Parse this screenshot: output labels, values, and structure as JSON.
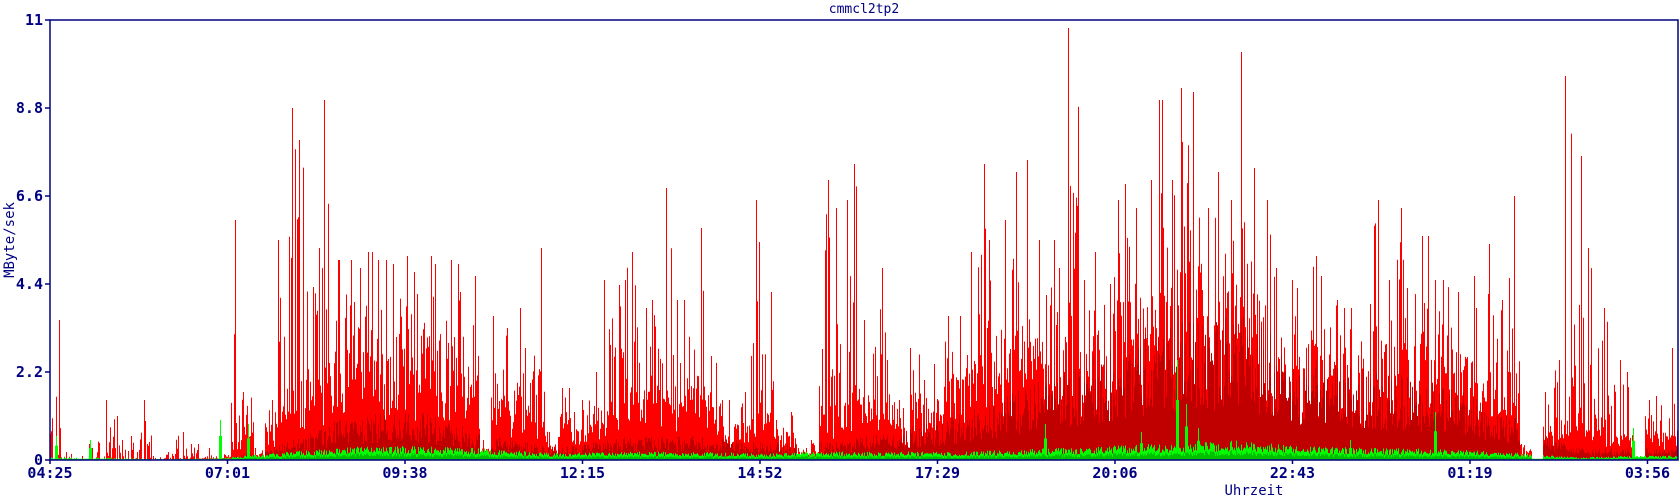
{
  "chart_data": {
    "type": "area",
    "title": "cmmcl2tp2",
    "xlabel": "Uhrzeit",
    "ylabel": "MByte/sek",
    "ylim": [
      0,
      11
    ],
    "yticks": [
      "0",
      "2.2",
      "4.4",
      "6.6",
      "8.8",
      "11"
    ],
    "xticks": [
      "04:25",
      "07:01",
      "09:38",
      "12:15",
      "14:52",
      "17:29",
      "20:06",
      "22:43",
      "01:19",
      "03:56"
    ],
    "x_start": "04:25",
    "x_span_hours": 24,
    "grid": false,
    "colors": {
      "red": "#ff0000",
      "dark_red": "#c00000",
      "green": "#00ff00",
      "dark_green": "#00c000",
      "axis": "#000080"
    },
    "red_max_per_10min": [
      3.5,
      0.2,
      0.1,
      0.4,
      1.5,
      1.1,
      0.5,
      0.6,
      1.5,
      0.1,
      0.2,
      0.7,
      0.4,
      0.4,
      0.3,
      0.2,
      6.0,
      1.7,
      0.3,
      1.5,
      5.5,
      8.8,
      8.0,
      5.3,
      9.0,
      5.0,
      5.0,
      4.8,
      5.2,
      5.0,
      4.9,
      5.1,
      4.7,
      5.1,
      4.9,
      5.0,
      4.9,
      4.6,
      0.5,
      3.6,
      3.3,
      3.8,
      2.8,
      5.3,
      0.7,
      1.8,
      1.2,
      1.5,
      2.2,
      4.5,
      4.5,
      5.2,
      3.8,
      4.0,
      6.8,
      4.0,
      4.0,
      5.8,
      2.6,
      1.5,
      1.5,
      1.7,
      6.5,
      4.2,
      1.0,
      1.2,
      0.3,
      0.5,
      7.0,
      6.3,
      6.5,
      7.4,
      3.5,
      4.8,
      2.5,
      1.5,
      2.8,
      2.0,
      2.4,
      3.6,
      3.6,
      5.2,
      7.4,
      5.5,
      6.0,
      7.2,
      7.5,
      5.5,
      5.5,
      4.8,
      10.8,
      4.5,
      5.2,
      4.4,
      6.5,
      6.9,
      6.3,
      7.0,
      9.0,
      7.0,
      9.3,
      9.2,
      6.3,
      7.2,
      6.5,
      10.2,
      7.3,
      6.5,
      4.8,
      4.5,
      4.3,
      5.1,
      4.6,
      4.0,
      3.8,
      3.8,
      3.9,
      6.5,
      4.5,
      6.3,
      4.3,
      5.6,
      4.5,
      4.5,
      4.2,
      4.6,
      3.8,
      5.4,
      4.0,
      6.6,
      0.4,
      0.0,
      1.7,
      2.5,
      9.6,
      7.6,
      5.3,
      3.8,
      2.5,
      2.2,
      0.1,
      1.5,
      1.6,
      2.8
    ],
    "red_typical_per_hour": [
      0,
      0,
      0.05,
      1.5,
      2.5,
      2.5,
      1.5,
      0.8,
      1.5,
      1.5,
      1.0,
      1.2,
      1.5,
      2.2,
      3.0,
      3.5,
      3.8,
      3.8,
      3.0,
      2.8,
      2.8,
      2.0,
      0.8,
      0.6
    ],
    "dark_red_typical_per_hour": [
      0,
      0,
      0,
      0.3,
      0.8,
      0.8,
      0.4,
      0.2,
      0.4,
      0.4,
      0.3,
      0.3,
      0.5,
      0.8,
      1.3,
      1.8,
      2.3,
      2.5,
      1.8,
      1.5,
      1.3,
      0.8,
      0.2,
      0.2
    ],
    "green_typical_per_hour": [
      0.05,
      0.02,
      0.03,
      0.15,
      0.25,
      0.25,
      0.2,
      0.12,
      0.15,
      0.15,
      0.12,
      0.15,
      0.15,
      0.15,
      0.2,
      0.25,
      0.3,
      0.35,
      0.25,
      0.22,
      0.2,
      0.15,
      0.05,
      0.08
    ],
    "green_spikes": [
      {
        "time": "04:30",
        "value": 0.6
      },
      {
        "time": "05:00",
        "value": 0.5
      },
      {
        "time": "06:55",
        "value": 1.0
      },
      {
        "time": "07:20",
        "value": 0.9
      },
      {
        "time": "19:05",
        "value": 0.9
      },
      {
        "time": "20:30",
        "value": 0.7
      },
      {
        "time": "21:02",
        "value": 2.5
      },
      {
        "time": "21:10",
        "value": 1.4
      },
      {
        "time": "21:20",
        "value": 0.8
      },
      {
        "time": "23:35",
        "value": 0.5
      },
      {
        "time": "00:50",
        "value": 1.2
      },
      {
        "time": "03:45",
        "value": 0.8
      }
    ]
  }
}
